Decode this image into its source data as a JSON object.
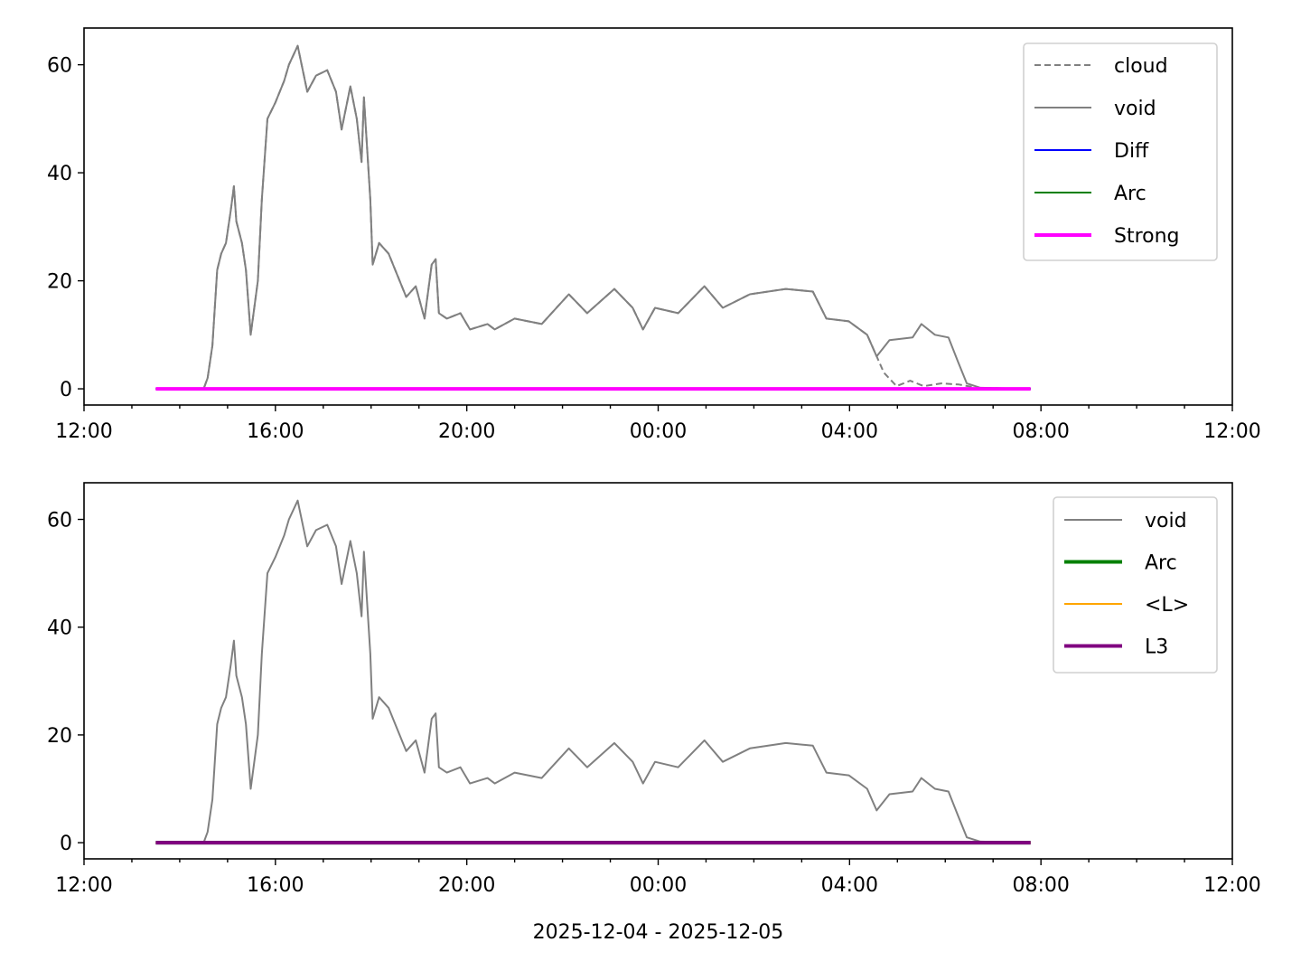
{
  "chart_data": [
    {
      "type": "line",
      "xlim": [
        "2025-12-04T12:00",
        "2025-12-05T12:00"
      ],
      "ylim": [
        -3.0,
        66.8
      ],
      "xticks": [
        "12:00",
        "16:00",
        "20:00",
        "00:00",
        "04:00",
        "08:00",
        "12:00"
      ],
      "yticks": [
        0,
        20,
        40,
        60
      ],
      "grid": false,
      "legend_position": "top-right",
      "series": [
        {
          "name": "cloud",
          "color": "#808080",
          "style": "dashed",
          "width": 2,
          "points": [
            [
              "2025-12-04T13:30",
              0
            ],
            [
              "2025-12-04T14:30",
              0
            ],
            [
              "2025-12-04T14:35",
              2
            ],
            [
              "2025-12-04T14:41",
              8
            ],
            [
              "2025-12-04T14:47",
              22
            ],
            [
              "2025-12-04T14:52",
              25
            ],
            [
              "2025-12-04T14:58",
              27
            ],
            [
              "2025-12-04T15:04",
              33
            ],
            [
              "2025-12-04T15:08",
              37.5
            ],
            [
              "2025-12-04T15:11",
              31
            ],
            [
              "2025-12-04T15:18",
              27
            ],
            [
              "2025-12-04T15:23",
              22
            ],
            [
              "2025-12-04T15:29",
              10
            ],
            [
              "2025-12-04T15:38",
              20
            ],
            [
              "2025-12-04T15:43",
              35
            ],
            [
              "2025-12-04T15:50",
              50
            ],
            [
              "2025-12-04T16:00",
              53
            ],
            [
              "2025-12-04T16:11",
              57
            ],
            [
              "2025-12-04T16:17",
              60
            ],
            [
              "2025-12-04T16:28",
              63.5
            ],
            [
              "2025-12-04T16:40",
              55
            ],
            [
              "2025-12-04T16:51",
              58
            ],
            [
              "2025-12-04T17:05",
              59
            ],
            [
              "2025-12-04T17:16",
              55
            ],
            [
              "2025-12-04T17:23",
              48
            ],
            [
              "2025-12-04T17:34",
              56
            ],
            [
              "2025-12-04T17:42",
              50
            ],
            [
              "2025-12-04T17:48",
              42
            ],
            [
              "2025-12-04T17:51",
              54
            ],
            [
              "2025-12-04T17:59",
              35
            ],
            [
              "2025-12-04T18:02",
              23
            ],
            [
              "2025-12-04T18:10",
              27
            ],
            [
              "2025-12-04T18:22",
              25
            ],
            [
              "2025-12-04T18:33",
              21
            ],
            [
              "2025-12-04T18:44",
              17
            ],
            [
              "2025-12-04T18:56",
              19
            ],
            [
              "2025-12-04T19:07",
              13
            ],
            [
              "2025-12-04T19:16",
              23
            ],
            [
              "2025-12-04T19:21",
              24
            ],
            [
              "2025-12-04T19:25",
              14
            ],
            [
              "2025-12-04T19:35",
              13
            ],
            [
              "2025-12-04T19:52",
              14
            ],
            [
              "2025-12-04T20:04",
              11
            ],
            [
              "2025-12-04T20:26",
              12
            ],
            [
              "2025-12-04T20:35",
              11
            ],
            [
              "2025-12-04T21:00",
              13
            ],
            [
              "2025-12-04T21:34",
              12
            ],
            [
              "2025-12-04T22:08",
              17.5
            ],
            [
              "2025-12-04T22:31",
              14
            ],
            [
              "2025-12-04T23:05",
              18.5
            ],
            [
              "2025-12-04T23:28",
              15
            ],
            [
              "2025-12-04T23:41",
              11
            ],
            [
              "2025-12-04T23:56",
              15
            ],
            [
              "2025-12-05T00:25",
              14
            ],
            [
              "2025-12-05T00:58",
              19
            ],
            [
              "2025-12-05T01:21",
              15
            ],
            [
              "2025-12-05T01:55",
              17.5
            ],
            [
              "2025-12-05T02:40",
              18.5
            ],
            [
              "2025-12-05T03:14",
              18
            ],
            [
              "2025-12-05T03:31",
              13
            ],
            [
              "2025-12-05T03:59",
              12.5
            ],
            [
              "2025-12-05T04:22",
              10
            ],
            [
              "2025-12-05T04:43",
              3
            ],
            [
              "2025-12-05T04:59",
              0.5
            ],
            [
              "2025-12-05T05:16",
              1.5
            ],
            [
              "2025-12-05T05:33",
              0.5
            ],
            [
              "2025-12-05T05:55",
              1
            ],
            [
              "2025-12-05T06:17",
              0.8
            ],
            [
              "2025-12-05T06:40",
              0.2
            ],
            [
              "2025-12-05T07:47",
              0
            ]
          ]
        },
        {
          "name": "void",
          "color": "#808080",
          "style": "solid",
          "width": 2,
          "points": [
            [
              "2025-12-04T13:30",
              0
            ],
            [
              "2025-12-04T14:30",
              0
            ],
            [
              "2025-12-04T14:35",
              2
            ],
            [
              "2025-12-04T14:41",
              8
            ],
            [
              "2025-12-04T14:47",
              22
            ],
            [
              "2025-12-04T14:52",
              25
            ],
            [
              "2025-12-04T14:58",
              27
            ],
            [
              "2025-12-04T15:04",
              33
            ],
            [
              "2025-12-04T15:08",
              37.5
            ],
            [
              "2025-12-04T15:11",
              31
            ],
            [
              "2025-12-04T15:18",
              27
            ],
            [
              "2025-12-04T15:23",
              22
            ],
            [
              "2025-12-04T15:29",
              10
            ],
            [
              "2025-12-04T15:38",
              20
            ],
            [
              "2025-12-04T15:43",
              35
            ],
            [
              "2025-12-04T15:50",
              50
            ],
            [
              "2025-12-04T16:00",
              53
            ],
            [
              "2025-12-04T16:11",
              57
            ],
            [
              "2025-12-04T16:17",
              60
            ],
            [
              "2025-12-04T16:28",
              63.5
            ],
            [
              "2025-12-04T16:40",
              55
            ],
            [
              "2025-12-04T16:51",
              58
            ],
            [
              "2025-12-04T17:05",
              59
            ],
            [
              "2025-12-04T17:16",
              55
            ],
            [
              "2025-12-04T17:23",
              48
            ],
            [
              "2025-12-04T17:34",
              56
            ],
            [
              "2025-12-04T17:42",
              50
            ],
            [
              "2025-12-04T17:48",
              42
            ],
            [
              "2025-12-04T17:51",
              54
            ],
            [
              "2025-12-04T17:59",
              35
            ],
            [
              "2025-12-04T18:02",
              23
            ],
            [
              "2025-12-04T18:10",
              27
            ],
            [
              "2025-12-04T18:22",
              25
            ],
            [
              "2025-12-04T18:33",
              21
            ],
            [
              "2025-12-04T18:44",
              17
            ],
            [
              "2025-12-04T18:56",
              19
            ],
            [
              "2025-12-04T19:07",
              13
            ],
            [
              "2025-12-04T19:16",
              23
            ],
            [
              "2025-12-04T19:21",
              24
            ],
            [
              "2025-12-04T19:25",
              14
            ],
            [
              "2025-12-04T19:35",
              13
            ],
            [
              "2025-12-04T19:52",
              14
            ],
            [
              "2025-12-04T20:04",
              11
            ],
            [
              "2025-12-04T20:26",
              12
            ],
            [
              "2025-12-04T20:35",
              11
            ],
            [
              "2025-12-04T21:00",
              13
            ],
            [
              "2025-12-04T21:34",
              12
            ],
            [
              "2025-12-04T22:08",
              17.5
            ],
            [
              "2025-12-04T22:31",
              14
            ],
            [
              "2025-12-04T23:05",
              18.5
            ],
            [
              "2025-12-04T23:28",
              15
            ],
            [
              "2025-12-04T23:41",
              11
            ],
            [
              "2025-12-04T23:56",
              15
            ],
            [
              "2025-12-05T00:25",
              14
            ],
            [
              "2025-12-05T00:58",
              19
            ],
            [
              "2025-12-05T01:21",
              15
            ],
            [
              "2025-12-05T01:55",
              17.5
            ],
            [
              "2025-12-05T02:40",
              18.5
            ],
            [
              "2025-12-05T03:14",
              18
            ],
            [
              "2025-12-05T03:31",
              13
            ],
            [
              "2025-12-05T03:59",
              12.5
            ],
            [
              "2025-12-05T04:22",
              10
            ],
            [
              "2025-12-05T04:34",
              6
            ],
            [
              "2025-12-05T04:50",
              9
            ],
            [
              "2025-12-05T05:19",
              9.5
            ],
            [
              "2025-12-05T05:30",
              12
            ],
            [
              "2025-12-05T05:47",
              10
            ],
            [
              "2025-12-05T06:04",
              9.5
            ],
            [
              "2025-12-05T06:16",
              5
            ],
            [
              "2025-12-05T06:27",
              1
            ],
            [
              "2025-12-05T06:44",
              0.2
            ],
            [
              "2025-12-05T07:47",
              0
            ]
          ]
        },
        {
          "name": "Diff",
          "color": "#0000ff",
          "style": "solid",
          "width": 2,
          "points": [
            [
              "2025-12-04T13:30",
              0
            ],
            [
              "2025-12-05T07:47",
              0
            ]
          ]
        },
        {
          "name": "Arc",
          "color": "#008000",
          "style": "solid",
          "width": 2,
          "points": [
            [
              "2025-12-04T13:30",
              0
            ],
            [
              "2025-12-05T07:47",
              0
            ]
          ]
        },
        {
          "name": "Strong",
          "color": "#ff00ff",
          "style": "solid",
          "width": 4,
          "points": [
            [
              "2025-12-04T13:30",
              0
            ],
            [
              "2025-12-05T07:47",
              0
            ]
          ]
        }
      ]
    },
    {
      "type": "line",
      "xlabel": "2025-12-04 - 2025-12-05",
      "xlim": [
        "2025-12-04T12:00",
        "2025-12-05T12:00"
      ],
      "ylim": [
        -3.0,
        66.8
      ],
      "xticks": [
        "12:00",
        "16:00",
        "20:00",
        "00:00",
        "04:00",
        "08:00",
        "12:00"
      ],
      "yticks": [
        0,
        20,
        40,
        60
      ],
      "grid": false,
      "legend_position": "top-right",
      "series": [
        {
          "name": "void",
          "color": "#808080",
          "style": "solid",
          "width": 2,
          "same_as": "void"
        },
        {
          "name": "Arc",
          "color": "#008000",
          "style": "solid",
          "width": 4,
          "points": [
            [
              "2025-12-04T13:30",
              0
            ],
            [
              "2025-12-05T07:47",
              0
            ]
          ]
        },
        {
          "name": "<L>",
          "color": "#ffa500",
          "style": "solid",
          "width": 2,
          "points": [
            [
              "2025-12-04T13:30",
              0
            ],
            [
              "2025-12-05T07:47",
              0
            ]
          ]
        },
        {
          "name": "L3",
          "color": "#800080",
          "style": "solid",
          "width": 4,
          "points": [
            [
              "2025-12-04T13:30",
              0
            ],
            [
              "2025-12-05T07:47",
              0
            ]
          ]
        }
      ]
    }
  ]
}
